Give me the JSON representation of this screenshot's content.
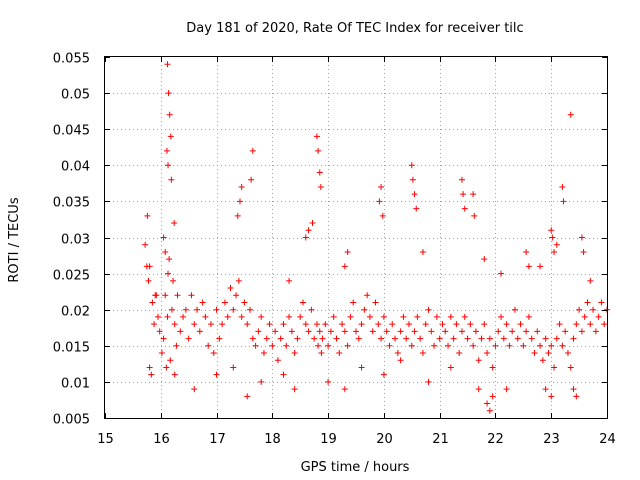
{
  "chart_data": {
    "type": "scatter",
    "title": "Day 181 of 2020, Rate Of TEC Index for receiver tilc",
    "xlabel": "GPS time / hours",
    "ylabel": "ROTI / TECUs",
    "xlim": [
      15,
      24
    ],
    "ylim": [
      0.005,
      0.055
    ],
    "xticks": [
      15,
      16,
      17,
      18,
      19,
      20,
      21,
      22,
      23,
      24
    ],
    "xtick_labels": [
      "15",
      "16",
      "17",
      "18",
      "19",
      "20",
      "21",
      "22",
      "23",
      "24"
    ],
    "yticks": [
      0.005,
      0.01,
      0.015,
      0.02,
      0.025,
      0.03,
      0.035,
      0.04,
      0.045,
      0.05,
      0.055
    ],
    "ytick_labels": [
      "0.005",
      "0.01",
      "0.015",
      "0.02",
      "0.025",
      "0.03",
      "0.035",
      "0.04",
      "0.045",
      "0.05",
      "0.055"
    ],
    "grid": true,
    "marker": "plus",
    "color": "#ff0000",
    "series": [
      {
        "name": "ROTI",
        "x": [
          15.72,
          15.75,
          15.78,
          15.8,
          15.83,
          15.85,
          15.88,
          15.92,
          15.95,
          15.98,
          16.02,
          16.05,
          16.08,
          16.1,
          16.12,
          16.13,
          16.15,
          16.17,
          16.2,
          16.22,
          16.25,
          16.28,
          16.3,
          16.35,
          16.4,
          16.45,
          16.5,
          16.55,
          16.6,
          16.65,
          16.7,
          16.75,
          16.8,
          16.85,
          16.9,
          16.95,
          17.0,
          17.05,
          17.1,
          17.15,
          17.2,
          17.25,
          17.3,
          17.35,
          17.4,
          17.45,
          17.5,
          17.55,
          17.6,
          17.65,
          17.7,
          17.75,
          17.8,
          17.85,
          17.9,
          17.95,
          18.0,
          18.05,
          18.1,
          18.15,
          18.2,
          18.25,
          18.3,
          18.35,
          18.4,
          18.45,
          18.5,
          18.55,
          18.6,
          18.65,
          18.7,
          18.75,
          18.8,
          18.82,
          18.85,
          18.88,
          18.9,
          18.95,
          19.0,
          19.05,
          19.1,
          19.15,
          19.2,
          19.25,
          19.3,
          19.35,
          19.4,
          19.45,
          19.5,
          19.55,
          19.6,
          19.65,
          19.7,
          19.75,
          19.8,
          19.85,
          19.9,
          19.95,
          20.0,
          20.05,
          20.1,
          20.15,
          20.2,
          20.25,
          20.3,
          20.35,
          20.4,
          20.45,
          20.5,
          20.55,
          20.6,
          20.65,
          20.7,
          20.75,
          20.8,
          20.85,
          20.9,
          20.95,
          21.0,
          21.05,
          21.1,
          21.15,
          21.2,
          21.25,
          21.3,
          21.35,
          21.4,
          21.45,
          21.5,
          21.55,
          21.6,
          21.65,
          21.7,
          21.75,
          21.8,
          21.85,
          21.9,
          21.95,
          22.0,
          22.05,
          22.1,
          22.15,
          22.2,
          22.25,
          22.3,
          22.35,
          22.4,
          22.45,
          22.5,
          22.55,
          22.6,
          22.65,
          22.7,
          22.75,
          22.8,
          22.85,
          22.9,
          22.95,
          23.0,
          23.05,
          23.1,
          23.15,
          23.2,
          23.25,
          23.3,
          23.35,
          23.4,
          23.45,
          23.5,
          23.55,
          23.6,
          23.65,
          23.7,
          23.75,
          23.8,
          23.85,
          23.9,
          23.95,
          24.0,
          16.12,
          16.14,
          16.16,
          16.18,
          16.11,
          16.13,
          16.19,
          16.24,
          17.65,
          17.62,
          17.45,
          17.42,
          17.38,
          18.8,
          18.82,
          18.85,
          18.87,
          18.72,
          18.65,
          18.6,
          19.95,
          19.92,
          19.98,
          20.5,
          20.52,
          20.55,
          20.58,
          21.4,
          21.42,
          21.45,
          21.6,
          21.62,
          22.55,
          22.6,
          23.0,
          23.02,
          23.05,
          23.2,
          23.22,
          23.35,
          23.55,
          23.58,
          16.05,
          16.08,
          15.76,
          15.8,
          15.9,
          16.25,
          16.6,
          17.0,
          17.3,
          17.8,
          18.2,
          18.4,
          19.0,
          19.3,
          19.6,
          20.0,
          20.3,
          20.8,
          21.2,
          21.7,
          21.85,
          21.9,
          21.95,
          22.2,
          22.9,
          23.0,
          23.4,
          23.45,
          19.3,
          19.35,
          17.55,
          18.3,
          20.7,
          21.8,
          22.1,
          22.8,
          23.1,
          23.7
        ],
        "y": [
          0.029,
          0.026,
          0.024,
          0.012,
          0.011,
          0.021,
          0.018,
          0.022,
          0.019,
          0.017,
          0.014,
          0.016,
          0.022,
          0.012,
          0.019,
          0.025,
          0.027,
          0.013,
          0.02,
          0.024,
          0.018,
          0.015,
          0.022,
          0.017,
          0.019,
          0.02,
          0.016,
          0.022,
          0.018,
          0.02,
          0.017,
          0.021,
          0.019,
          0.015,
          0.018,
          0.014,
          0.02,
          0.016,
          0.018,
          0.021,
          0.019,
          0.023,
          0.02,
          0.022,
          0.024,
          0.019,
          0.021,
          0.018,
          0.02,
          0.016,
          0.015,
          0.017,
          0.019,
          0.014,
          0.016,
          0.018,
          0.015,
          0.017,
          0.013,
          0.016,
          0.018,
          0.015,
          0.019,
          0.017,
          0.014,
          0.016,
          0.019,
          0.021,
          0.018,
          0.017,
          0.02,
          0.016,
          0.018,
          0.015,
          0.017,
          0.014,
          0.016,
          0.018,
          0.015,
          0.017,
          0.019,
          0.016,
          0.014,
          0.018,
          0.017,
          0.015,
          0.019,
          0.021,
          0.017,
          0.016,
          0.018,
          0.02,
          0.022,
          0.019,
          0.017,
          0.021,
          0.018,
          0.016,
          0.019,
          0.017,
          0.015,
          0.018,
          0.016,
          0.014,
          0.017,
          0.019,
          0.016,
          0.018,
          0.015,
          0.017,
          0.019,
          0.016,
          0.014,
          0.018,
          0.02,
          0.017,
          0.015,
          0.019,
          0.016,
          0.018,
          0.017,
          0.015,
          0.019,
          0.016,
          0.018,
          0.014,
          0.017,
          0.019,
          0.016,
          0.018,
          0.015,
          0.017,
          0.013,
          0.016,
          0.018,
          0.014,
          0.016,
          0.012,
          0.015,
          0.017,
          0.019,
          0.016,
          0.018,
          0.015,
          0.017,
          0.02,
          0.016,
          0.018,
          0.015,
          0.017,
          0.019,
          0.016,
          0.014,
          0.017,
          0.015,
          0.013,
          0.016,
          0.014,
          0.015,
          0.012,
          0.016,
          0.018,
          0.015,
          0.017,
          0.014,
          0.012,
          0.016,
          0.018,
          0.02,
          0.017,
          0.019,
          0.021,
          0.018,
          0.02,
          0.017,
          0.019,
          0.021,
          0.018,
          0.02,
          0.054,
          0.05,
          0.047,
          0.044,
          0.042,
          0.04,
          0.038,
          0.032,
          0.042,
          0.038,
          0.037,
          0.035,
          0.033,
          0.044,
          0.042,
          0.039,
          0.037,
          0.032,
          0.031,
          0.03,
          0.037,
          0.035,
          0.033,
          0.04,
          0.038,
          0.036,
          0.034,
          0.038,
          0.036,
          0.034,
          0.036,
          0.033,
          0.028,
          0.026,
          0.031,
          0.03,
          0.028,
          0.037,
          0.035,
          0.047,
          0.03,
          0.028,
          0.03,
          0.028,
          0.033,
          0.026,
          0.022,
          0.011,
          0.009,
          0.011,
          0.012,
          0.01,
          0.011,
          0.009,
          0.01,
          0.009,
          0.012,
          0.011,
          0.013,
          0.01,
          0.012,
          0.009,
          0.007,
          0.006,
          0.008,
          0.009,
          0.009,
          0.008,
          0.009,
          0.008,
          0.026,
          0.028,
          0.008,
          0.024,
          0.028,
          0.027,
          0.025,
          0.026,
          0.029,
          0.024
        ]
      }
    ]
  }
}
